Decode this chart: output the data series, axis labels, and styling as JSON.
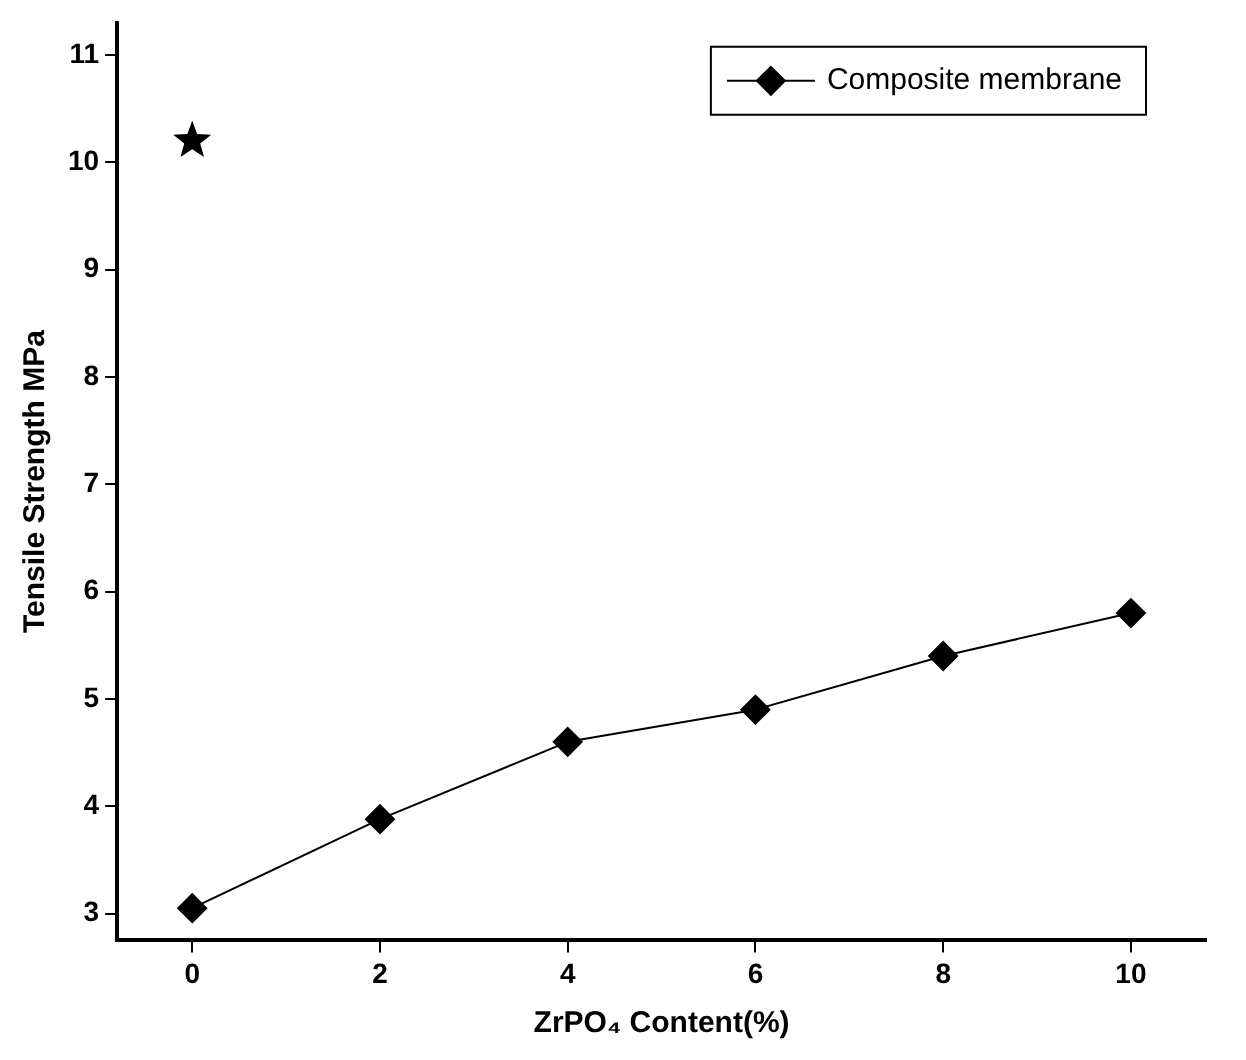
{
  "chart_data": {
    "type": "line",
    "xlabel": "ZrPO₄ Content(%)",
    "ylabel": "Tensile Strength MPa",
    "x": [
      0,
      2,
      4,
      6,
      8,
      10
    ],
    "series": [
      {
        "name": "Composite membrane",
        "color": "#000000",
        "marker": "diamond",
        "values": [
          3.05,
          3.88,
          4.6,
          4.9,
          5.4,
          5.8
        ]
      },
      {
        "type": "scatter",
        "color": "#000000",
        "marker": "star",
        "x": [
          0
        ],
        "values": [
          10.2
        ]
      }
    ],
    "xlim": [
      -0.8,
      10.8
    ],
    "xticks": [
      0,
      2,
      4,
      6,
      8,
      10
    ],
    "ylim": [
      2.75,
      11.3
    ],
    "yticks": [
      3,
      4,
      5,
      6,
      7,
      8,
      9,
      10,
      11
    ],
    "grid": false,
    "legend": "top right"
  }
}
